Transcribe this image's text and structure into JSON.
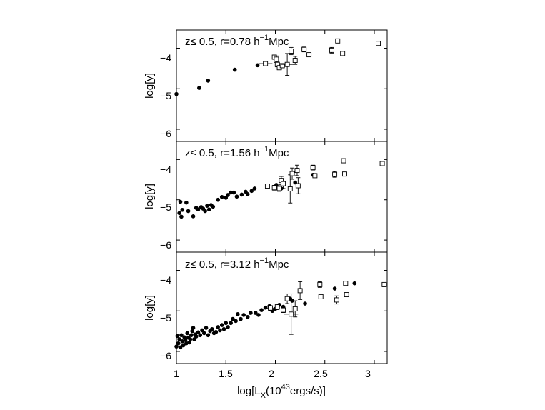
{
  "chart_data": [
    {
      "type": "scatter",
      "annotation": {
        "pre": "z≤ 0.5, r=0.78 h",
        "sup": "−1",
        "post": "Mpc"
      },
      "ylabel": "log[y]",
      "yticks": [
        "−4",
        "−5",
        "−6"
      ],
      "xlim": [
        1.0,
        3.13
      ],
      "ylim": [
        -6.3,
        -3.55
      ],
      "series": [
        {
          "marker": "filled-circle",
          "points": [
            [
              1.0,
              -5.13
            ],
            [
              1.23,
              -4.98
            ],
            [
              1.32,
              -4.8
            ],
            [
              1.59,
              -4.53
            ],
            [
              1.82,
              -4.42
            ]
          ]
        },
        {
          "marker": "open-square-errorbar",
          "points": [
            {
              "x": 1.9,
              "y": -4.38,
              "ey": 0.05,
              "ex": 0.07
            },
            {
              "x": 1.99,
              "y": -4.22,
              "ey": 0.05
            },
            {
              "x": 2.01,
              "y": -4.27,
              "ey": 0.08
            },
            {
              "x": 2.02,
              "y": -4.4,
              "ey": 0.06
            },
            {
              "x": 2.04,
              "y": -4.48,
              "ey": 0.05
            },
            {
              "x": 2.07,
              "y": -4.43,
              "ey": 0.05
            },
            {
              "x": 2.12,
              "y": -4.4,
              "ey": 0.27,
              "ex": 0.06
            },
            {
              "x": 2.16,
              "y": -4.07,
              "ey": 0.09
            },
            {
              "x": 2.2,
              "y": -4.3,
              "ey": 0.1
            },
            {
              "x": 2.29,
              "y": -4.03,
              "ey": 0.06
            },
            {
              "x": 2.34,
              "y": -4.16,
              "ey": 0.04
            },
            {
              "x": 2.57,
              "y": -4.05,
              "ey": 0.07
            },
            {
              "x": 2.63,
              "y": -3.82,
              "ey": 0.04
            },
            {
              "x": 2.68,
              "y": -4.13,
              "ey": 0.04
            },
            {
              "x": 3.04,
              "y": -3.88,
              "ey": 0.05
            }
          ]
        }
      ]
    },
    {
      "type": "scatter",
      "annotation": {
        "pre": "z≤ 0.5, r=1.56 h",
        "sup": "−1",
        "post": "Mpc"
      },
      "ylabel": "log[y]",
      "yticks": [
        "−4",
        "−5",
        "−6"
      ],
      "xlim": [
        1.0,
        3.13
      ],
      "ylim": [
        -6.3,
        -3.55
      ],
      "series": [
        {
          "marker": "filled-circle",
          "points": [
            [
              1.03,
              -5.33
            ],
            [
              1.04,
              -5.05
            ],
            [
              1.05,
              -5.42
            ],
            [
              1.06,
              -5.25
            ],
            [
              1.1,
              -5.07
            ],
            [
              1.12,
              -5.28
            ],
            [
              1.17,
              -5.41
            ],
            [
              1.2,
              -5.2
            ],
            [
              1.22,
              -5.24
            ],
            [
              1.25,
              -5.18
            ],
            [
              1.27,
              -5.22
            ],
            [
              1.29,
              -5.28
            ],
            [
              1.31,
              -5.15
            ],
            [
              1.33,
              -5.24
            ],
            [
              1.35,
              -5.13
            ],
            [
              1.37,
              -5.17
            ],
            [
              1.42,
              -5.0
            ],
            [
              1.46,
              -4.93
            ],
            [
              1.5,
              -4.95
            ],
            [
              1.52,
              -4.88
            ],
            [
              1.55,
              -4.82
            ],
            [
              1.58,
              -4.82
            ],
            [
              1.61,
              -4.92
            ],
            [
              1.66,
              -4.87
            ],
            [
              1.7,
              -4.8
            ],
            [
              1.72,
              -4.86
            ],
            [
              1.76,
              -4.78
            ],
            [
              1.79,
              -4.72
            ],
            [
              2.01,
              -4.63
            ],
            [
              2.06,
              -4.72
            ],
            [
              2.2,
              -4.57
            ],
            [
              2.38,
              -4.38
            ]
          ]
        },
        {
          "marker": "open-square-errorbar",
          "points": [
            {
              "x": 1.92,
              "y": -4.66,
              "ey": 0.05,
              "ex": 0.06
            },
            {
              "x": 1.99,
              "y": -4.7,
              "ey": 0.06
            },
            {
              "x": 2.04,
              "y": -4.72,
              "ey": 0.07
            },
            {
              "x": 2.06,
              "y": -4.52,
              "ey": 0.1
            },
            {
              "x": 2.08,
              "y": -4.6,
              "ey": 0.12
            },
            {
              "x": 2.15,
              "y": -4.73,
              "ey": 0.35,
              "ex": 0.07
            },
            {
              "x": 2.17,
              "y": -4.35,
              "ey": 0.14
            },
            {
              "x": 2.23,
              "y": -4.65,
              "ey": 0.2
            },
            {
              "x": 2.22,
              "y": -4.27,
              "ey": 0.13
            },
            {
              "x": 2.38,
              "y": -4.2,
              "ey": 0.06
            },
            {
              "x": 2.4,
              "y": -4.4,
              "ey": 0.04
            },
            {
              "x": 2.6,
              "y": -4.37,
              "ey": 0.07
            },
            {
              "x": 2.69,
              "y": -4.03,
              "ey": 0.03
            },
            {
              "x": 2.7,
              "y": -4.36,
              "ey": 0.04
            },
            {
              "x": 3.08,
              "y": -4.1,
              "ey": 0.05
            }
          ]
        }
      ]
    },
    {
      "type": "scatter",
      "annotation": {
        "pre": "z≤ 0.5, r=3.12 h",
        "sup": "−1",
        "post": "Mpc"
      },
      "ylabel": "log[y]",
      "yticks": [
        "−4",
        "−5",
        "−6"
      ],
      "xlim": [
        1.0,
        3.13
      ],
      "ylim": [
        -6.3,
        -3.55
      ],
      "xticks": [
        "1",
        "1.5",
        "2",
        "2.5",
        "3"
      ],
      "xlabel": {
        "pre": "log[L",
        "sub": "X",
        "mid": "(10",
        "sup": "43",
        "post": "ergs/s)]"
      },
      "series": [
        {
          "marker": "filled-circle",
          "points": [
            [
              1.0,
              -5.88
            ],
            [
              1.01,
              -5.62
            ],
            [
              1.02,
              -5.8
            ],
            [
              1.03,
              -5.7
            ],
            [
              1.04,
              -5.9
            ],
            [
              1.05,
              -5.6
            ],
            [
              1.06,
              -5.75
            ],
            [
              1.07,
              -5.85
            ],
            [
              1.08,
              -5.65
            ],
            [
              1.09,
              -5.72
            ],
            [
              1.1,
              -5.8
            ],
            [
              1.11,
              -5.55
            ],
            [
              1.12,
              -5.66
            ],
            [
              1.13,
              -5.78
            ],
            [
              1.14,
              -5.7
            ],
            [
              1.15,
              -5.6
            ],
            [
              1.16,
              -5.5
            ],
            [
              1.17,
              -5.42
            ],
            [
              1.18,
              -5.7
            ],
            [
              1.19,
              -5.58
            ],
            [
              1.2,
              -5.63
            ],
            [
              1.22,
              -5.53
            ],
            [
              1.24,
              -5.6
            ],
            [
              1.26,
              -5.48
            ],
            [
              1.28,
              -5.55
            ],
            [
              1.3,
              -5.42
            ],
            [
              1.32,
              -5.6
            ],
            [
              1.34,
              -5.5
            ],
            [
              1.36,
              -5.45
            ],
            [
              1.38,
              -5.55
            ],
            [
              1.4,
              -5.52
            ],
            [
              1.42,
              -5.4
            ],
            [
              1.44,
              -5.48
            ],
            [
              1.46,
              -5.35
            ],
            [
              1.48,
              -5.45
            ],
            [
              1.5,
              -5.3
            ],
            [
              1.52,
              -5.4
            ],
            [
              1.55,
              -5.3
            ],
            [
              1.57,
              -5.2
            ],
            [
              1.6,
              -5.25
            ],
            [
              1.62,
              -5.08
            ],
            [
              1.65,
              -5.2
            ],
            [
              1.68,
              -5.1
            ],
            [
              1.72,
              -5.15
            ],
            [
              1.75,
              -5.05
            ],
            [
              1.8,
              -5.05
            ],
            [
              1.83,
              -5.1
            ],
            [
              1.86,
              -4.98
            ],
            [
              1.9,
              -4.92
            ],
            [
              1.94,
              -4.88
            ],
            [
              1.97,
              -5.0
            ],
            [
              2.0,
              -4.95
            ],
            [
              2.04,
              -4.85
            ],
            [
              2.08,
              -4.9
            ],
            [
              2.15,
              -4.7
            ],
            [
              2.17,
              -4.75
            ],
            [
              2.3,
              -4.82
            ],
            [
              2.6,
              -4.45
            ],
            [
              2.8,
              -4.32
            ]
          ]
        },
        {
          "marker": "open-square-errorbar",
          "points": [
            {
              "x": 1.95,
              "y": -4.93,
              "ey": 0.06,
              "ex": 0.07
            },
            {
              "x": 2.02,
              "y": -4.9,
              "ey": 0.07
            },
            {
              "x": 2.08,
              "y": -4.98,
              "ey": 0.06
            },
            {
              "x": 2.12,
              "y": -4.7,
              "ey": 0.12
            },
            {
              "x": 2.16,
              "y": -5.08,
              "ey": 0.5,
              "ex": 0.07
            },
            {
              "x": 2.2,
              "y": -4.95,
              "ey": 0.2
            },
            {
              "x": 2.25,
              "y": -4.5,
              "ey": 0.22
            },
            {
              "x": 2.45,
              "y": -4.35,
              "ey": 0.07
            },
            {
              "x": 2.46,
              "y": -4.65,
              "ey": 0.03
            },
            {
              "x": 2.62,
              "y": -4.73,
              "ey": 0.1
            },
            {
              "x": 2.71,
              "y": -4.32,
              "ey": 0.04
            },
            {
              "x": 2.72,
              "y": -4.6,
              "ey": 0.04
            },
            {
              "x": 3.1,
              "y": -4.35,
              "ey": 0.05
            }
          ]
        }
      ]
    }
  ]
}
